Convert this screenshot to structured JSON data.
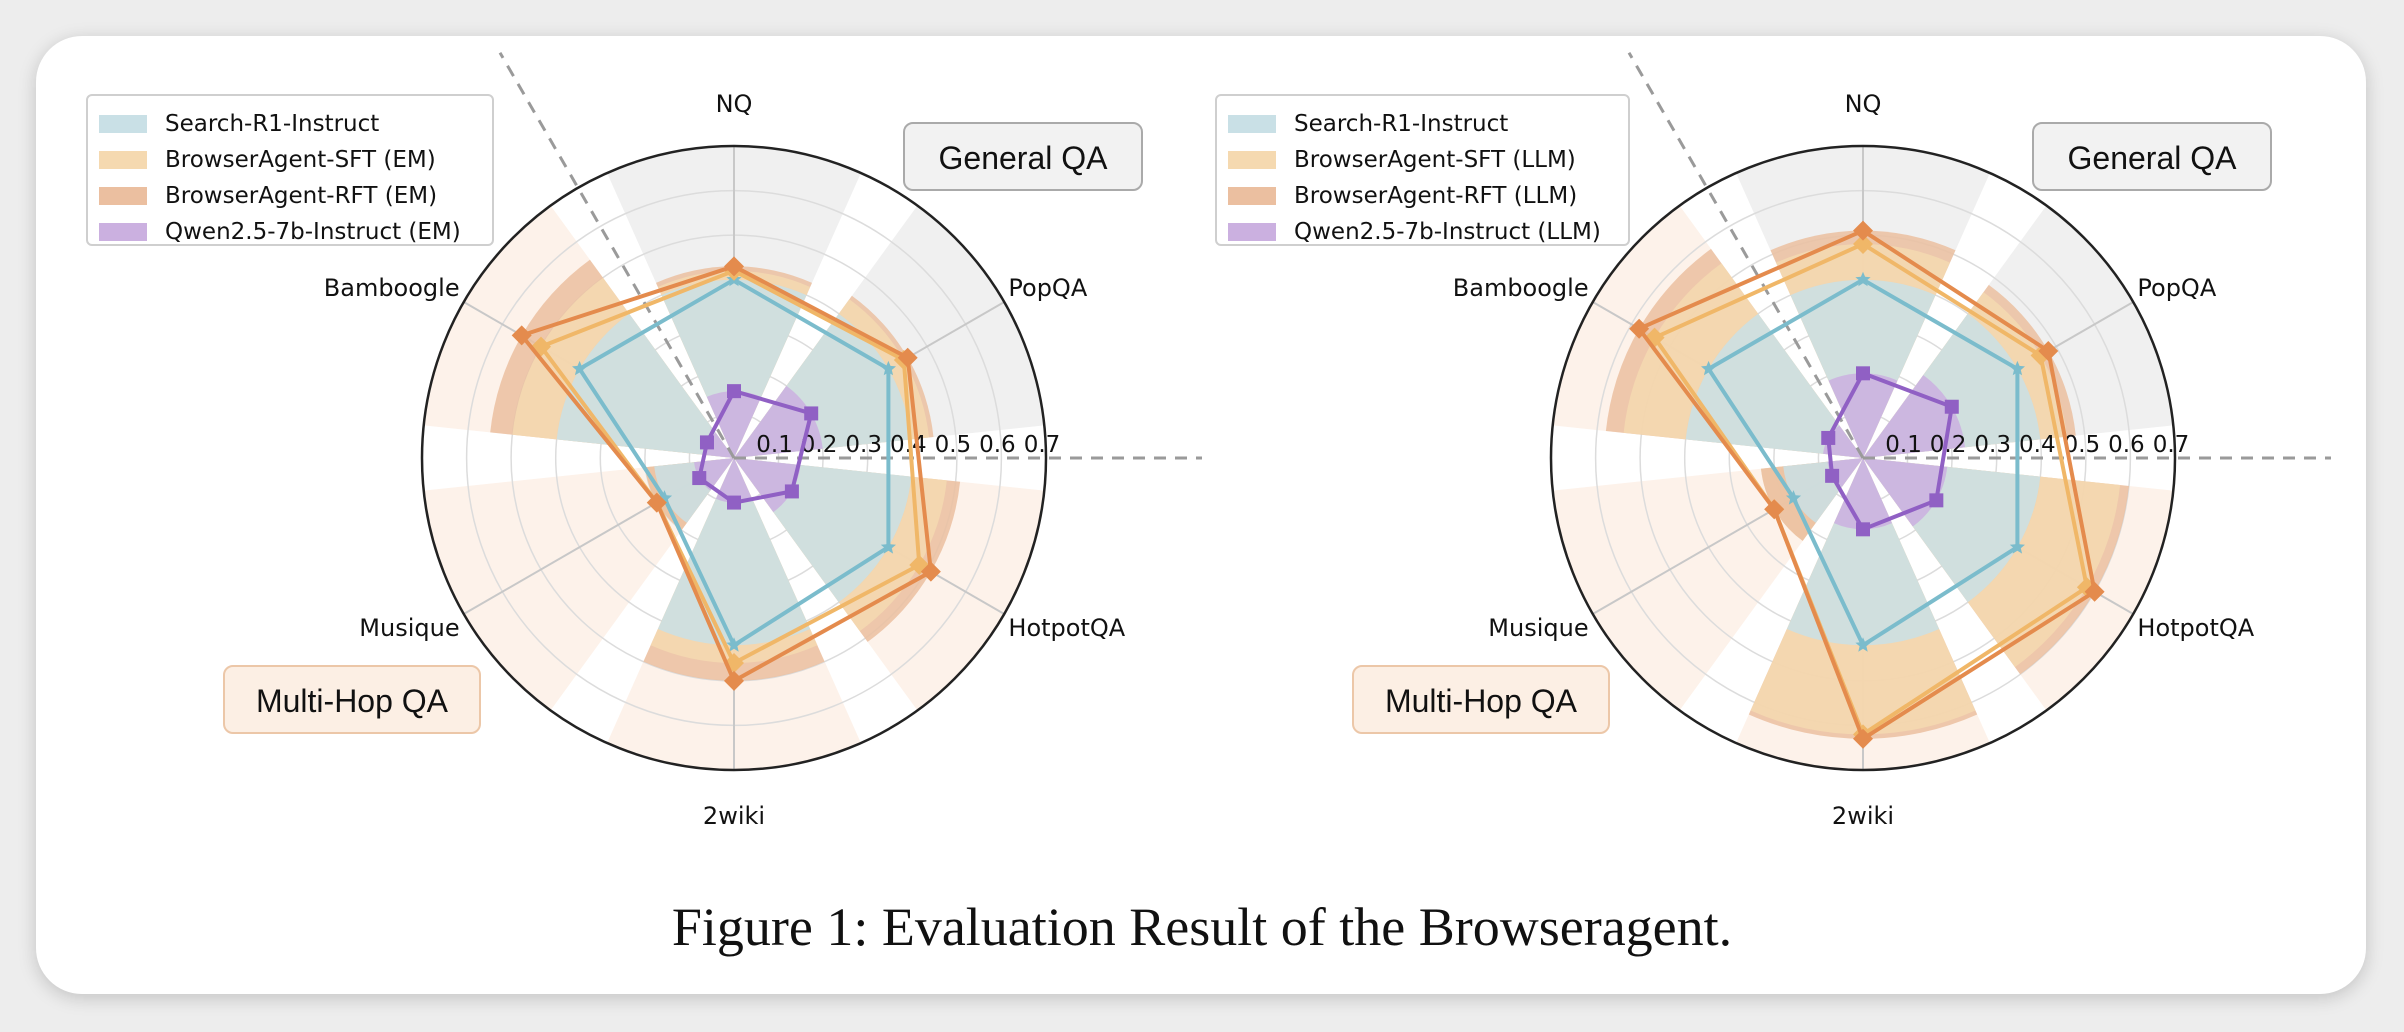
{
  "figure": {
    "caption": "Figure 1: Evaluation Result of the Browseragent."
  },
  "chart_data": [
    {
      "type": "radar",
      "axes": [
        "NQ",
        "PopQA",
        "HotpotQA",
        "2wiki",
        "Musique",
        "Bamboogle"
      ],
      "radial_ticks": [
        "0.1",
        "0.2",
        "0.3",
        "0.4",
        "0.5",
        "0.6",
        "0.7"
      ],
      "rmax": 0.7,
      "group_labels": {
        "general": "General QA",
        "multihop": "Multi-Hop QA"
      },
      "series": [
        {
          "name": "Search-R1-Instruct",
          "values": [
            0.4,
            0.4,
            0.4,
            0.42,
            0.18,
            0.4
          ],
          "color": "#7bbccc",
          "fill": "#c9e0e6",
          "marker": "star"
        },
        {
          "name": "BrowserAgent-SFT (EM)",
          "values": [
            0.42,
            0.44,
            0.48,
            0.46,
            0.2,
            0.5
          ],
          "color": "#f0b768",
          "fill": "#f5d9b0",
          "marker": "diamond"
        },
        {
          "name": "BrowserAgent-RFT (EM)",
          "values": [
            0.43,
            0.45,
            0.51,
            0.5,
            0.2,
            0.55
          ],
          "color": "#e48b4d",
          "fill": "#ebbfa0",
          "marker": "diamond"
        },
        {
          "name": "Qwen2.5-7b-Instruct (EM)",
          "values": [
            0.15,
            0.2,
            0.15,
            0.1,
            0.09,
            0.07
          ],
          "color": "#9060c4",
          "fill": "#cbb0e0",
          "marker": "square"
        }
      ]
    },
    {
      "type": "radar",
      "axes": [
        "NQ",
        "PopQA",
        "HotpotQA",
        "2wiki",
        "Musique",
        "Bamboogle"
      ],
      "radial_ticks": [
        "0.1",
        "0.2",
        "0.3",
        "0.4",
        "0.5",
        "0.6",
        "0.7"
      ],
      "rmax": 0.7,
      "group_labels": {
        "general": "General QA",
        "multihop": "Multi-Hop QA"
      },
      "series": [
        {
          "name": "Search-R1-Instruct",
          "values": [
            0.4,
            0.4,
            0.4,
            0.42,
            0.18,
            0.4
          ],
          "color": "#7bbccc",
          "fill": "#c9e0e6",
          "marker": "star"
        },
        {
          "name": "BrowserAgent-SFT (LLM)",
          "values": [
            0.48,
            0.46,
            0.58,
            0.62,
            0.23,
            0.54
          ],
          "color": "#f0b768",
          "fill": "#f5d9b0",
          "marker": "diamond"
        },
        {
          "name": "BrowserAgent-RFT (LLM)",
          "values": [
            0.51,
            0.48,
            0.6,
            0.63,
            0.23,
            0.58
          ],
          "color": "#e48b4d",
          "fill": "#ebbfa0",
          "marker": "diamond"
        },
        {
          "name": "Qwen2.5-7b-Instruct (LLM)",
          "values": [
            0.19,
            0.23,
            0.19,
            0.16,
            0.08,
            0.09
          ],
          "color": "#9060c4",
          "fill": "#cbb0e0",
          "marker": "square"
        }
      ]
    }
  ]
}
